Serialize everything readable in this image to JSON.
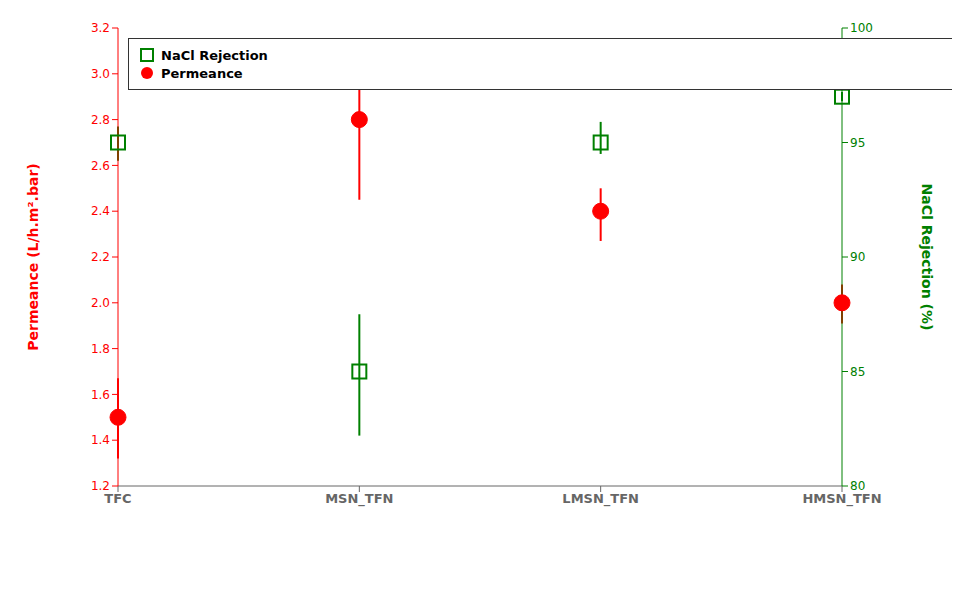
{
  "chart_data": {
    "type": "scatter",
    "categories": [
      "TFC",
      "MSN_TFN",
      "LMSN_TFN",
      "HMSN_TFN"
    ],
    "series": [
      {
        "name": "NaCl Rejection",
        "color": "#008000",
        "marker": "square",
        "axis": "y2",
        "values": [
          95.0,
          85.0,
          95.0,
          97.0
        ],
        "yerr_lower": [
          0.8,
          2.8,
          0.5,
          0.2
        ],
        "yerr_upper": [
          0.7,
          2.5,
          0.9,
          0.2
        ]
      },
      {
        "name": "Permeance",
        "color": "#FF0000",
        "marker": "circle",
        "values": [
          1.5,
          2.8,
          2.4,
          2.0
        ],
        "yerr_lower": [
          0.18,
          0.35,
          0.13,
          0.09
        ],
        "yerr_upper": [
          0.17,
          0.18,
          0.1,
          0.08
        ]
      }
    ],
    "ylabel": "Permeance (L/h.m².bar)",
    "y2label": "NaCl Rejection (%)",
    "ylim": [
      1.2,
      3.2
    ],
    "yticks": [
      1.2,
      1.4,
      1.6,
      1.8,
      {
        "value": 2,
        "label": "2.0"
      },
      2.2,
      2.4,
      2.6,
      2.8,
      {
        "value": 3,
        "label": "3.0"
      },
      3.2
    ],
    "y2lim": [
      80,
      100
    ],
    "y2ticks": [
      80,
      85,
      90,
      95,
      100
    ],
    "grid": false,
    "legend": "upper left"
  }
}
